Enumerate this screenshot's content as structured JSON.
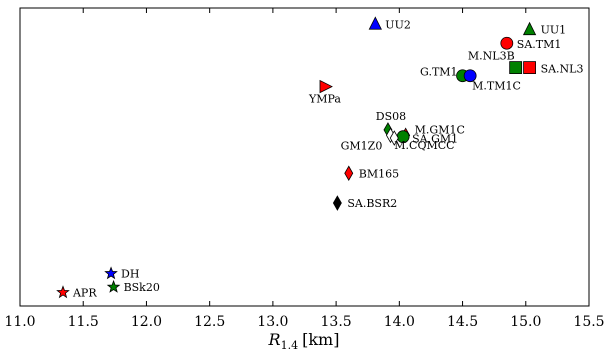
{
  "chart_data": {
    "type": "scatter",
    "xlabel": "R",
    "xlabel_sub": "1.4",
    "xlabel_unit": "[km]",
    "xlim": [
      11.0,
      15.5
    ],
    "x_ticks": [
      "11.0",
      "11.5",
      "12.0",
      "12.5",
      "13.0",
      "13.5",
      "14.0",
      "14.5",
      "15.0",
      "15.5"
    ],
    "y_ticks_shown": false,
    "grid": false,
    "points": [
      {
        "label": "UU2",
        "x": 13.81,
        "y": 10.4,
        "marker": "triangle-up",
        "color": "#0000ff"
      },
      {
        "label": "UU1",
        "x": 15.03,
        "y": 10.2,
        "marker": "triangle-up",
        "color": "#008000"
      },
      {
        "label": "SA.TM1",
        "x": 14.85,
        "y": 9.7,
        "marker": "circle",
        "color": "#ff0000"
      },
      {
        "label": "M.NL3B",
        "x": 14.92,
        "y": 8.8,
        "marker": "square",
        "color": "#008000"
      },
      {
        "label": "SA.NL3",
        "x": 15.03,
        "y": 8.8,
        "marker": "square",
        "color": "#ff0000"
      },
      {
        "label": "G.TM1",
        "x": 14.5,
        "y": 8.5,
        "marker": "circle",
        "color": "#008000"
      },
      {
        "label": "M.TM1C",
        "x": 14.56,
        "y": 8.5,
        "marker": "circle",
        "color": "#0000ff"
      },
      {
        "label": "YMPa",
        "x": 13.42,
        "y": 8.1,
        "marker": "triangle-right",
        "color": "#ff0000"
      },
      {
        "label": "DS08",
        "x": 13.91,
        "y": 6.5,
        "marker": "diamond",
        "color": "#008000"
      },
      {
        "label": "M.GM1C",
        "x": 14.05,
        "y": 6.3,
        "marker": "diamond",
        "color": "#ff0000"
      },
      {
        "label": "SA.GM1",
        "x": 14.03,
        "y": 6.25,
        "marker": "circle",
        "color": "#008000"
      },
      {
        "label": "GM1Z0",
        "x": 13.93,
        "y": 6.3,
        "marker": "diamond",
        "color": "#ffffff"
      },
      {
        "label": "M.CQMCC",
        "x": 13.96,
        "y": 6.2,
        "marker": "diamond",
        "color": "#ffffff"
      },
      {
        "label": "BM165",
        "x": 13.6,
        "y": 4.9,
        "marker": "diamond",
        "color": "#ff0000"
      },
      {
        "label": "SA.BSR2",
        "x": 13.51,
        "y": 3.8,
        "marker": "diamond",
        "color": "#000000"
      },
      {
        "label": "DH",
        "x": 11.72,
        "y": 1.2,
        "marker": "star",
        "color": "#0000ff"
      },
      {
        "label": "BSk20",
        "x": 11.74,
        "y": 0.7,
        "marker": "star",
        "color": "#008000"
      },
      {
        "label": "APR",
        "x": 11.34,
        "y": 0.5,
        "marker": "star",
        "color": "#ff0000"
      }
    ]
  }
}
